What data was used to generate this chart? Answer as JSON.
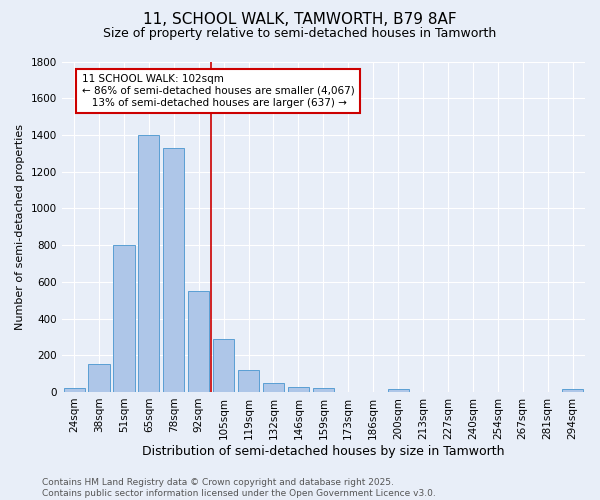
{
  "title1": "11, SCHOOL WALK, TAMWORTH, B79 8AF",
  "title2": "Size of property relative to semi-detached houses in Tamworth",
  "xlabel": "Distribution of semi-detached houses by size in Tamworth",
  "ylabel": "Number of semi-detached properties",
  "categories": [
    "24sqm",
    "38sqm",
    "51sqm",
    "65sqm",
    "78sqm",
    "92sqm",
    "105sqm",
    "119sqm",
    "132sqm",
    "146sqm",
    "159sqm",
    "173sqm",
    "186sqm",
    "200sqm",
    "213sqm",
    "227sqm",
    "240sqm",
    "254sqm",
    "267sqm",
    "281sqm",
    "294sqm"
  ],
  "values": [
    20,
    150,
    800,
    1400,
    1330,
    550,
    290,
    120,
    50,
    25,
    20,
    0,
    0,
    15,
    0,
    0,
    0,
    0,
    0,
    0,
    15
  ],
  "bar_color": "#aec6e8",
  "bar_edge_color": "#5a9fd4",
  "marker_bin_index": 6,
  "marker_color": "#cc0000",
  "annotation_line1": "11 SCHOOL WALK: 102sqm",
  "annotation_line2": "← 86% of semi-detached houses are smaller (4,067)",
  "annotation_line3": "13% of semi-detached houses are larger (637) →",
  "annotation_box_color": "#ffffff",
  "annotation_box_edge": "#cc0000",
  "ylim": [
    0,
    1800
  ],
  "yticks": [
    0,
    200,
    400,
    600,
    800,
    1000,
    1200,
    1400,
    1600,
    1800
  ],
  "bg_color": "#e8eef8",
  "footer_text": "Contains HM Land Registry data © Crown copyright and database right 2025.\nContains public sector information licensed under the Open Government Licence v3.0.",
  "title1_fontsize": 11,
  "title2_fontsize": 9,
  "xlabel_fontsize": 9,
  "ylabel_fontsize": 8,
  "tick_fontsize": 7.5,
  "annotation_fontsize": 7.5,
  "footer_fontsize": 6.5
}
